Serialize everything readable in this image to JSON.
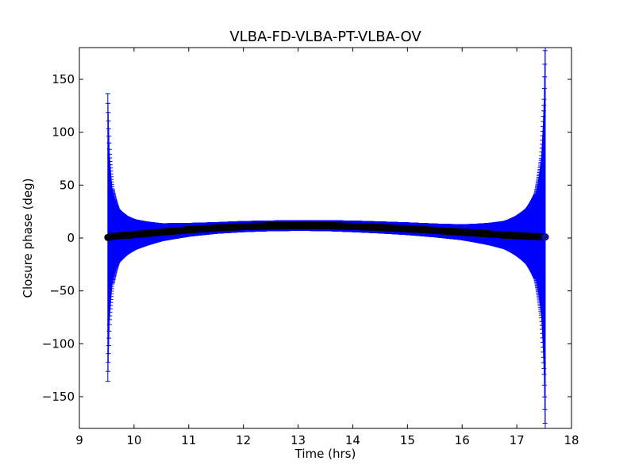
{
  "chart_data": {
    "type": "scatter",
    "title": "VLBA-FD-VLBA-PT-VLBA-OV",
    "xlabel": "Time (hrs)",
    "ylabel": "Closure phase (deg)",
    "xlim": [
      9,
      18
    ],
    "ylim": [
      -180,
      180
    ],
    "xticks": [
      9,
      10,
      11,
      12,
      13,
      14,
      15,
      16,
      17,
      18
    ],
    "xtick_labels": [
      "9",
      "10",
      "11",
      "12",
      "13",
      "14",
      "15",
      "16",
      "17",
      "18"
    ],
    "yticks": [
      -150,
      -100,
      -50,
      0,
      50,
      100,
      150
    ],
    "ytick_labels": [
      "−150",
      "−100",
      "−50",
      "0",
      "50",
      "100",
      "150"
    ],
    "grid": false,
    "legend": "none",
    "series": [
      {
        "style": "errorbar",
        "marker": "circle",
        "marker_color": "#000000",
        "error_color": "#0000ff",
        "points": [
          {
            "x": 9.52,
            "y": 0.5,
            "err": 136
          },
          {
            "x": 9.55,
            "y": 1.0,
            "err": 80
          },
          {
            "x": 9.6,
            "y": 1.5,
            "err": 45
          },
          {
            "x": 9.7,
            "y": 2.0,
            "err": 25
          },
          {
            "x": 9.85,
            "y": 2.5,
            "err": 18
          },
          {
            "x": 10.0,
            "y": 3.2,
            "err": 14
          },
          {
            "x": 10.5,
            "y": 5.5,
            "err": 8
          },
          {
            "x": 11.0,
            "y": 7.8,
            "err": 6
          },
          {
            "x": 11.5,
            "y": 9.5,
            "err": 5
          },
          {
            "x": 12.0,
            "y": 10.8,
            "err": 4.8
          },
          {
            "x": 12.5,
            "y": 11.5,
            "err": 4.6
          },
          {
            "x": 13.0,
            "y": 11.8,
            "err": 4.6
          },
          {
            "x": 13.5,
            "y": 11.7,
            "err": 4.7
          },
          {
            "x": 14.0,
            "y": 11.0,
            "err": 5
          },
          {
            "x": 14.5,
            "y": 10.0,
            "err": 5.2
          },
          {
            "x": 15.0,
            "y": 8.8,
            "err": 5.5
          },
          {
            "x": 15.5,
            "y": 7.2,
            "err": 6
          },
          {
            "x": 16.0,
            "y": 5.5,
            "err": 7
          },
          {
            "x": 16.5,
            "y": 3.8,
            "err": 10
          },
          {
            "x": 16.8,
            "y": 2.8,
            "err": 13
          },
          {
            "x": 17.0,
            "y": 2.2,
            "err": 18
          },
          {
            "x": 17.2,
            "y": 1.7,
            "err": 26
          },
          {
            "x": 17.35,
            "y": 1.4,
            "err": 40
          },
          {
            "x": 17.45,
            "y": 1.2,
            "err": 75
          },
          {
            "x": 17.5,
            "y": 1.1,
            "err": 130
          },
          {
            "x": 17.52,
            "y": 1.0,
            "err": 190
          }
        ]
      }
    ]
  }
}
